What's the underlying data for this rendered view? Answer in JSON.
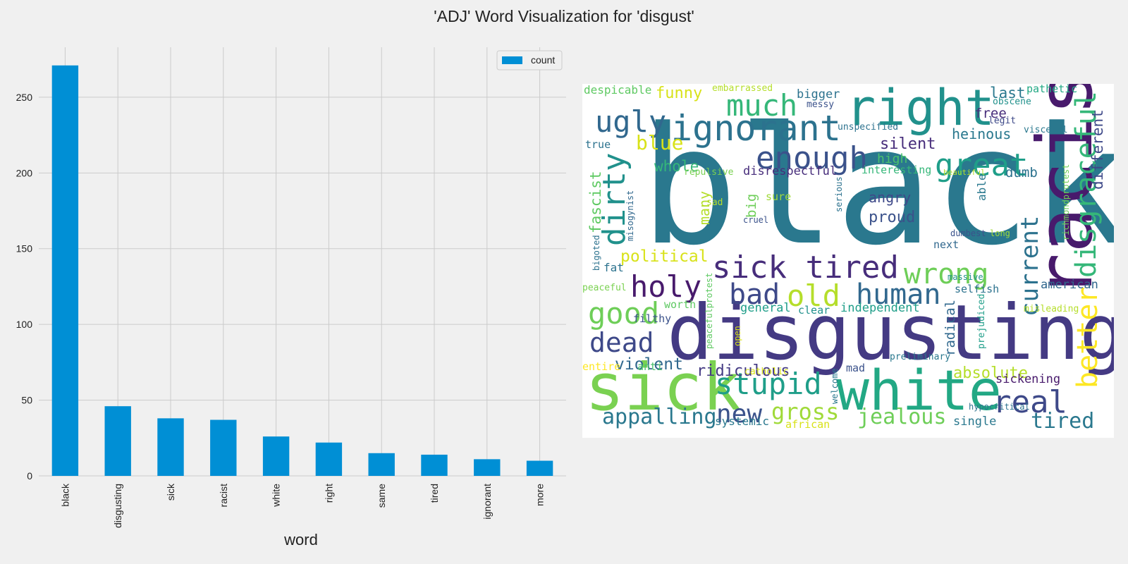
{
  "figure": {
    "title": "'ADJ' Word Visualization for 'disgust'"
  },
  "chart_data": [
    {
      "type": "bar",
      "title": "",
      "xlabel": "word",
      "ylabel": "",
      "categories": [
        "black",
        "disgusting",
        "sick",
        "racist",
        "white",
        "right",
        "same",
        "tired",
        "ignorant",
        "more"
      ],
      "series": [
        {
          "name": "count",
          "values": [
            271,
            46,
            38,
            37,
            26,
            22,
            15,
            14,
            11,
            10
          ],
          "color": "#008fd5"
        }
      ],
      "ylim": [
        0,
        283
      ],
      "yticks": [
        0,
        50,
        100,
        150,
        200,
        250
      ],
      "grid": true,
      "legend": "top-right",
      "background": "#f0f0f0"
    },
    {
      "type": "wordcloud",
      "colormap": "viridis",
      "background": "#ffffff",
      "words": [
        {
          "text": "black",
          "color": "#2a788e"
        },
        {
          "text": "disgusting",
          "color": "#443a83"
        },
        {
          "text": "racist",
          "color": "#481a6c"
        },
        {
          "text": "sick",
          "color": "#7ad151"
        },
        {
          "text": "white",
          "color": "#22a884"
        },
        {
          "text": "right",
          "color": "#21918c"
        },
        {
          "text": "ignorant",
          "color": "#2c728e"
        },
        {
          "text": "great",
          "color": "#1f9e89"
        },
        {
          "text": "disgraceful",
          "color": "#35b779"
        },
        {
          "text": "better",
          "color": "#fde725"
        },
        {
          "text": "much",
          "color": "#35b779"
        },
        {
          "text": "ugly",
          "color": "#31688e"
        },
        {
          "text": "enough",
          "color": "#3b528b"
        },
        {
          "text": "dirty",
          "color": "#21918c"
        },
        {
          "text": "sick tired",
          "color": "#472d7b"
        },
        {
          "text": "wrong",
          "color": "#6ece58"
        },
        {
          "text": "holy",
          "color": "#481a6c"
        },
        {
          "text": "current",
          "color": "#2c728e"
        },
        {
          "text": "bad",
          "color": "#3e4989"
        },
        {
          "text": "old",
          "color": "#b5de2b"
        },
        {
          "text": "human",
          "color": "#31688e"
        },
        {
          "text": "good",
          "color": "#6ece58"
        },
        {
          "text": "dead",
          "color": "#3e4989"
        },
        {
          "text": "stupid",
          "color": "#1f9e89"
        },
        {
          "text": "real",
          "color": "#3e4989"
        },
        {
          "text": "new",
          "color": "#3b528b"
        },
        {
          "text": "gross",
          "color": "#a0da39"
        },
        {
          "text": "jealous",
          "color": "#6ece58"
        },
        {
          "text": "appalling",
          "color": "#2a788e"
        },
        {
          "text": "tired",
          "color": "#2a788e"
        },
        {
          "text": "violent",
          "color": "#31688e"
        },
        {
          "text": "ridiculous",
          "color": "#443a83"
        },
        {
          "text": "absolute",
          "color": "#b5de2b"
        },
        {
          "text": "political",
          "color": "#d8e219"
        },
        {
          "text": "blue",
          "color": "#d8e219"
        },
        {
          "text": "funny",
          "color": "#d8e219"
        },
        {
          "text": "fascist",
          "color": "#5ec962"
        },
        {
          "text": "different",
          "color": "#3e4989"
        },
        {
          "text": "many",
          "color": "#b5de2b"
        },
        {
          "text": "proud",
          "color": "#3b528b"
        },
        {
          "text": "angry",
          "color": "#3e4989"
        },
        {
          "text": "silent",
          "color": "#472d7b"
        },
        {
          "text": "heinous",
          "color": "#2a788e"
        },
        {
          "text": "whole",
          "color": "#35b779"
        },
        {
          "text": "last",
          "color": "#2a788e"
        },
        {
          "text": "free",
          "color": "#472d7b"
        },
        {
          "text": "dumb",
          "color": "#2c728e"
        },
        {
          "text": "radical",
          "color": "#31688e"
        },
        {
          "text": "american",
          "color": "#31688e"
        },
        {
          "text": "independent",
          "color": "#1f9e89"
        },
        {
          "text": "general",
          "color": "#1f9e89"
        },
        {
          "text": "disrespectful",
          "color": "#472d7b"
        },
        {
          "text": "big",
          "color": "#6ece58"
        },
        {
          "text": "bigger",
          "color": "#2c728e"
        },
        {
          "text": "high",
          "color": "#4ac16d"
        },
        {
          "text": "despicable",
          "color": "#5ec962"
        },
        {
          "text": "systemic",
          "color": "#2a788e"
        },
        {
          "text": "african",
          "color": "#d8e219"
        },
        {
          "text": "single",
          "color": "#2a788e"
        },
        {
          "text": "sickening",
          "color": "#481a6c"
        },
        {
          "text": "mad",
          "color": "#3b528b"
        },
        {
          "text": "able",
          "color": "#2a788e"
        },
        {
          "text": "sure",
          "color": "#a0da39"
        },
        {
          "text": "interesting",
          "color": "#35b779"
        },
        {
          "text": "fat",
          "color": "#2c728e"
        },
        {
          "text": "true",
          "color": "#2c728e"
        },
        {
          "text": "clear",
          "color": "#21918c"
        },
        {
          "text": "worth",
          "color": "#5ec962"
        },
        {
          "text": "filthy",
          "color": "#3b528b"
        },
        {
          "text": "selfish",
          "color": "#2c728e"
        },
        {
          "text": "next",
          "color": "#31688e"
        },
        {
          "text": "entire",
          "color": "#fde725"
        },
        {
          "text": "anti",
          "color": "#4ac16d"
        },
        {
          "text": "embarrassed",
          "color": "#b5de2b"
        },
        {
          "text": "pathetic",
          "color": "#22a884"
        },
        {
          "text": "messy",
          "color": "#3b528b"
        },
        {
          "text": "obscene",
          "color": "#21918c"
        },
        {
          "text": "legit",
          "color": "#3e4989"
        },
        {
          "text": "visceral",
          "color": "#2a788e"
        },
        {
          "text": "unspecified",
          "color": "#2c728e"
        },
        {
          "text": "repulsive",
          "color": "#7ad151"
        },
        {
          "text": "beautiful",
          "color": "#b5de2b"
        },
        {
          "text": "sad",
          "color": "#b5de2b"
        },
        {
          "text": "cruel",
          "color": "#3b528b"
        },
        {
          "text": "serious",
          "color": "#2c728e"
        },
        {
          "text": "misogynist",
          "color": "#31688e"
        },
        {
          "text": "dumbest",
          "color": "#3b528b"
        },
        {
          "text": "long",
          "color": "#a0da39"
        },
        {
          "text": "richmondprotest",
          "color": "#6ece58"
        },
        {
          "text": "massive",
          "color": "#21918c"
        },
        {
          "text": "prejudiced",
          "color": "#1f9e89"
        },
        {
          "text": "misleading",
          "color": "#b5de2b"
        },
        {
          "text": "peacefulprotest",
          "color": "#5ec962"
        },
        {
          "text": "peaceful",
          "color": "#7ad151"
        },
        {
          "text": "bigoted",
          "color": "#2c728e"
        },
        {
          "text": "open",
          "color": "#d8e219"
        },
        {
          "text": "catholic",
          "color": "#d8e219"
        },
        {
          "text": "welcome",
          "color": "#2a788e"
        },
        {
          "text": "preliminary",
          "color": "#2a788e"
        },
        {
          "text": "hypocritical",
          "color": "#2c728e"
        }
      ]
    }
  ]
}
